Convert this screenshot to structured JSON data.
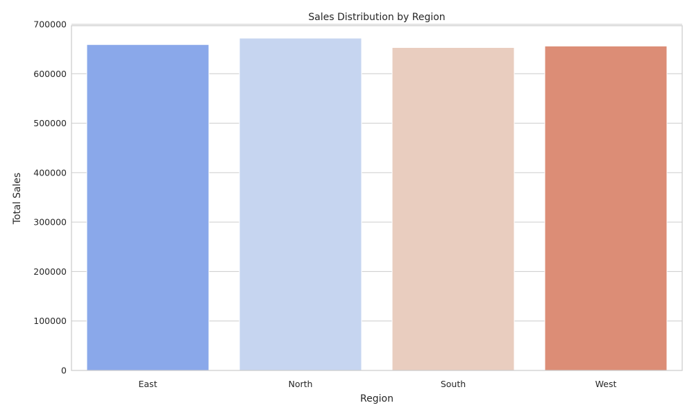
{
  "chart_data": {
    "type": "bar",
    "title": "Sales Distribution by Region",
    "xlabel": "Region",
    "ylabel": "Total Sales",
    "categories": [
      "East",
      "North",
      "South",
      "West"
    ],
    "values": [
      659000,
      672000,
      653000,
      656000
    ],
    "colors": [
      "#8aa8ea",
      "#c6d5f0",
      "#e9cdbf",
      "#dc8d76"
    ],
    "ylim": [
      0,
      700000
    ],
    "yticks": [
      0,
      100000,
      200000,
      300000,
      400000,
      500000,
      600000,
      700000
    ],
    "ytick_labels": [
      "0",
      "100000",
      "200000",
      "300000",
      "400000",
      "500000",
      "600000",
      "700000"
    ],
    "grid": true,
    "grid_axis": "y",
    "legend": false
  }
}
